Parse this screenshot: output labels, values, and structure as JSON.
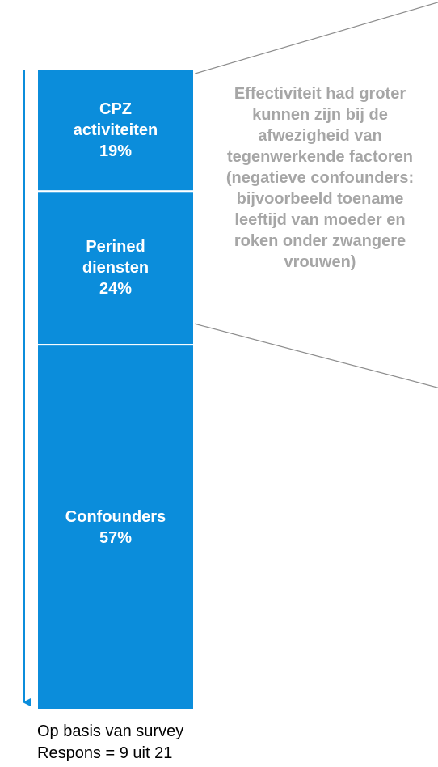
{
  "chart_data": {
    "type": "stacked_bar",
    "series": [
      {
        "name": "CPZ activiteiten",
        "values": [
          19
        ],
        "value_labels": [
          "19%"
        ],
        "color": "#0b8ddb"
      },
      {
        "name": "Perined diensten",
        "values": [
          24
        ],
        "value_labels": [
          "24%"
        ],
        "color": "#0b8ddb"
      },
      {
        "name": "Confounders",
        "values": [
          57
        ],
        "value_labels": [
          "57%"
        ],
        "color": "#0b8ddb"
      }
    ],
    "annotation": "Effectiviteit had groter kunnen zijn bij de afwezigheid van tegenwerkende factoren (negatieve confounders: bijvoorbeeld toename leeftijd van moeder en roken onder zwangere vrouwen)",
    "notes": [
      "Op basis van survey",
      "Respons = 9 uit 21"
    ]
  }
}
